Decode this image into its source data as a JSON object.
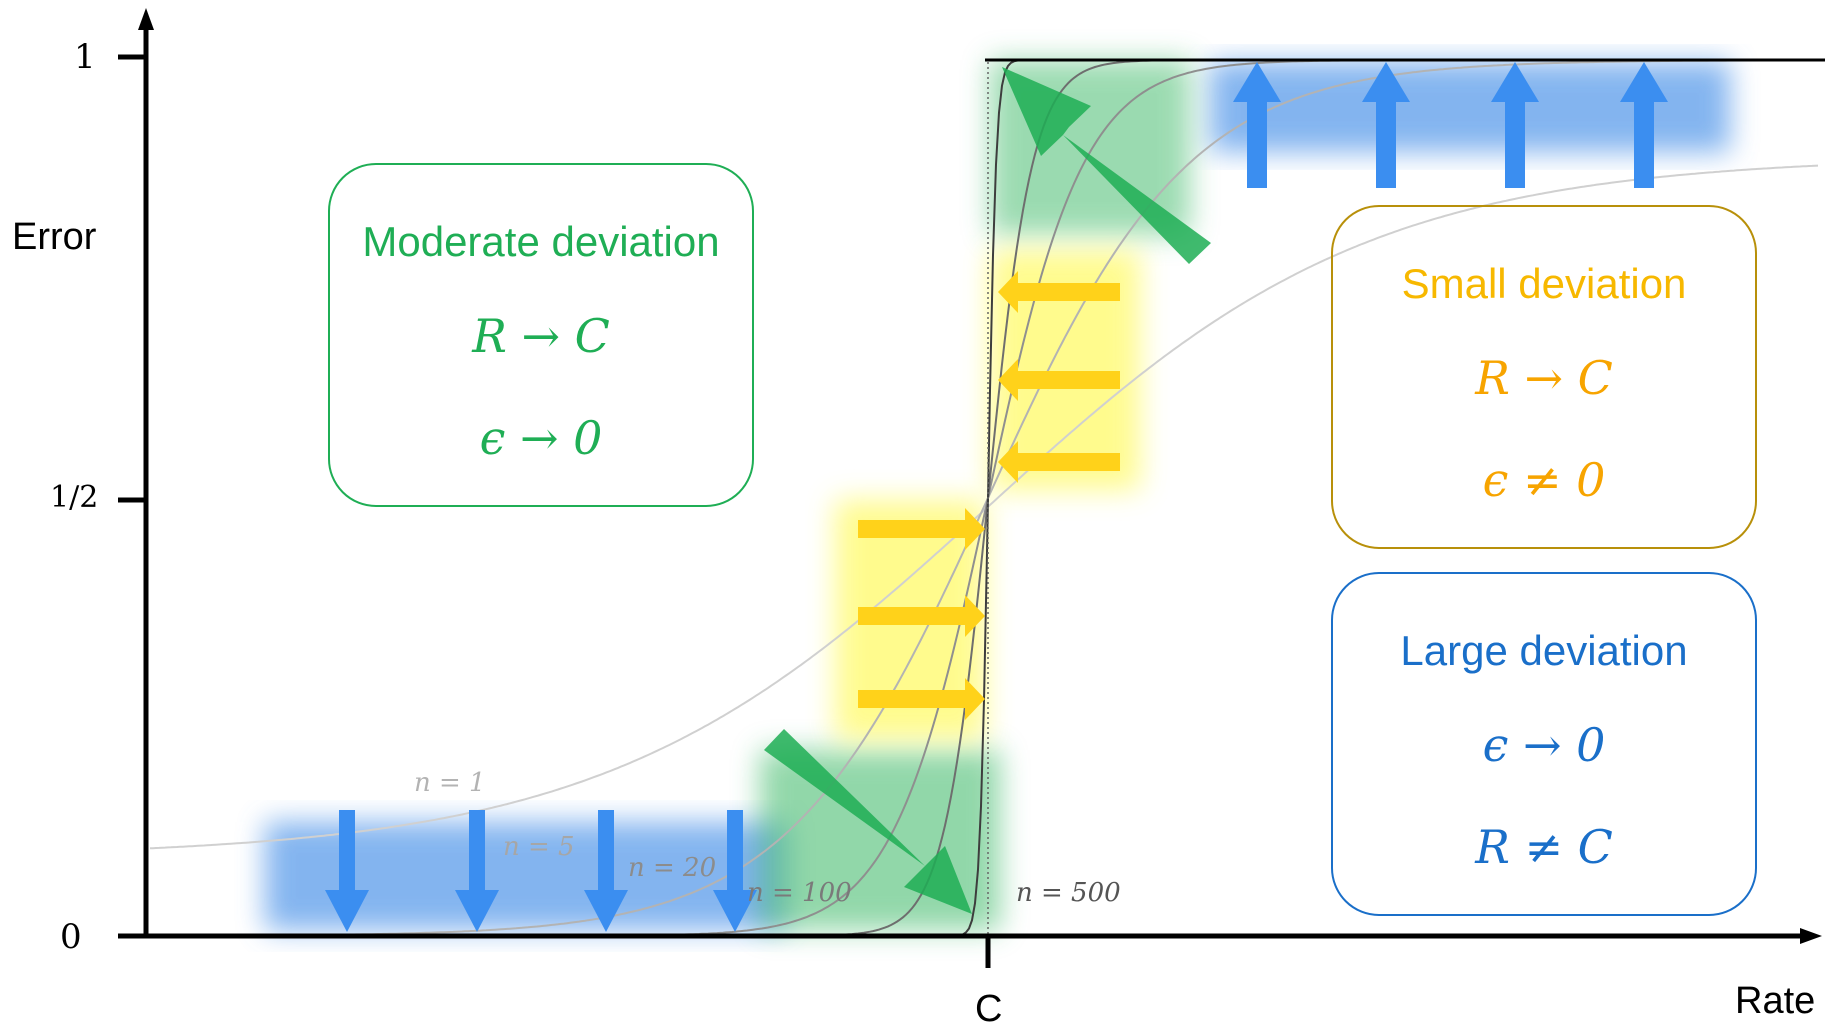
{
  "axes": {
    "y_label": "Error",
    "x_label": "Rate",
    "x_tick": "C",
    "y_ticks": [
      "1",
      "1/2",
      "0"
    ]
  },
  "curves": [
    {
      "label": "n = 1"
    },
    {
      "label": "n = 5"
    },
    {
      "label": "n = 20"
    },
    {
      "label": "n = 100"
    },
    {
      "label": "n = 500"
    }
  ],
  "regimes": {
    "moderate": {
      "title": "Moderate deviation",
      "line1": "R → C",
      "line2": "ϵ → 0",
      "color": "#17a84a"
    },
    "small": {
      "title": "Small deviation",
      "line1": "R → C",
      "line2": "ϵ ≠ 0",
      "color": "#f2b705",
      "border": "#b8900a"
    },
    "large": {
      "title": "Large deviation",
      "line1": "ϵ → 0",
      "line2": "R ≠ C",
      "color": "#1a6fc9"
    }
  }
}
